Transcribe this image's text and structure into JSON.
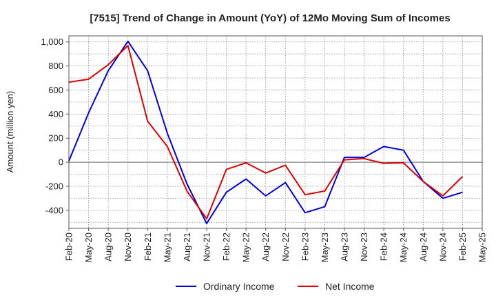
{
  "chart_data": {
    "type": "line",
    "title": "[7515]  Trend of Change in Amount (YoY) of 12Mo Moving Sum of Incomes",
    "xlabel": "",
    "ylabel": "Amount (million yen)",
    "ylim": [
      -550,
      1050
    ],
    "yticks": [
      -400,
      -200,
      0,
      200,
      400,
      600,
      800,
      1000
    ],
    "ytick_labels": [
      "-400",
      "-200",
      "0",
      "200",
      "400",
      "600",
      "800",
      "1,000"
    ],
    "categories": [
      "Feb-20",
      "May-20",
      "Aug-20",
      "Nov-20",
      "Feb-21",
      "May-21",
      "Aug-21",
      "Nov-21",
      "Feb-22",
      "May-22",
      "Aug-22",
      "Nov-22",
      "Feb-23",
      "May-23",
      "Aug-23",
      "Nov-23",
      "Feb-24",
      "May-24",
      "Aug-24",
      "Nov-24",
      "Feb-25",
      "May-25"
    ],
    "grid": true,
    "legend_position": "bottom",
    "series": [
      {
        "name": "Ordinary Income",
        "color": "#0000dd",
        "values": [
          10,
          410,
          760,
          1005,
          760,
          240,
          -180,
          -510,
          -250,
          -140,
          -280,
          -170,
          -420,
          -370,
          40,
          40,
          130,
          100,
          -160,
          -300,
          -250,
          null
        ]
      },
      {
        "name": "Net Income",
        "color": "#dd0000",
        "values": [
          665,
          690,
          810,
          970,
          340,
          130,
          -240,
          -470,
          -60,
          -5,
          -90,
          -25,
          -270,
          -240,
          20,
          30,
          -10,
          -5,
          -160,
          -280,
          -120,
          null
        ]
      }
    ]
  }
}
